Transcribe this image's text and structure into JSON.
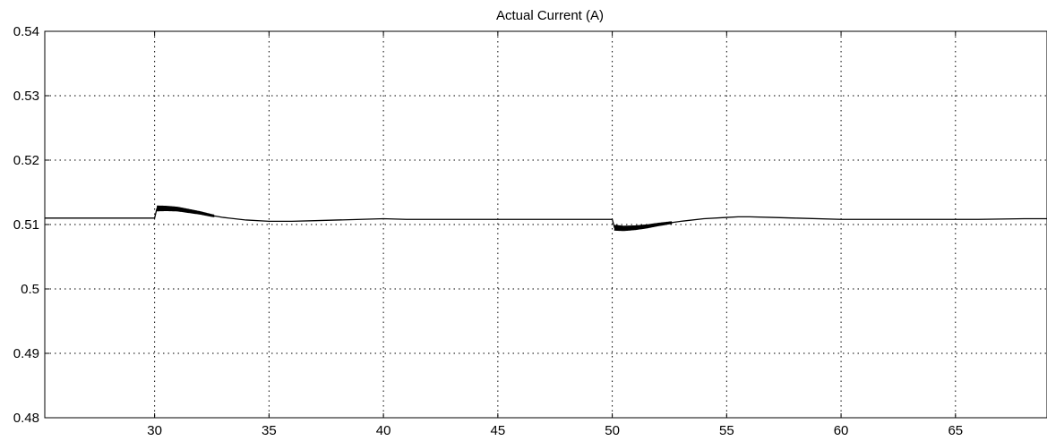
{
  "chart_data": {
    "type": "line",
    "title": "Actual Current (A)",
    "xlabel": "",
    "ylabel": "",
    "xlim": [
      25.2,
      69.0
    ],
    "ylim": [
      0.48,
      0.54
    ],
    "xticks": [
      30,
      35,
      40,
      45,
      50,
      55,
      60,
      65
    ],
    "xtick_labels": [
      "30",
      "35",
      "40",
      "45",
      "50",
      "55",
      "60",
      "65"
    ],
    "yticks": [
      0.48,
      0.49,
      0.5,
      0.51,
      0.52,
      0.53,
      0.54
    ],
    "ytick_labels": [
      "0.48",
      "0.49",
      "0.5",
      "0.51",
      "0.52",
      "0.53",
      "0.54"
    ],
    "grid": true,
    "legend": "none",
    "line_color": "#000000",
    "series": [
      {
        "x": [
          25.2,
          30.0,
          30.1,
          30.5,
          31.0,
          31.5,
          32.0,
          32.5,
          33.0,
          34.0,
          35.0,
          36.0,
          37.0,
          38.0,
          39.0,
          40.0,
          41.0,
          42.0,
          44.0,
          46.0,
          48.0,
          50.0,
          50.1,
          50.5,
          51.0,
          51.5,
          52.0,
          53.0,
          54.0,
          55.0,
          55.5,
          56.0,
          57.0,
          58.0,
          60.0,
          62.0,
          64.0,
          66.0,
          68.0,
          69.0
        ],
        "y": [
          0.511,
          0.511,
          0.5125,
          0.5125,
          0.5124,
          0.5121,
          0.5118,
          0.5114,
          0.5111,
          0.5107,
          0.5105,
          0.5105,
          0.5106,
          0.5107,
          0.5108,
          0.5109,
          0.5108,
          0.5108,
          0.5108,
          0.5108,
          0.5108,
          0.5108,
          0.5095,
          0.5094,
          0.5095,
          0.5097,
          0.51,
          0.5105,
          0.5109,
          0.5111,
          0.5112,
          0.5112,
          0.5111,
          0.511,
          0.5108,
          0.5108,
          0.5108,
          0.5108,
          0.5109,
          0.5109
        ]
      }
    ],
    "noisy_segments": [
      {
        "x_start": 30.1,
        "x_end": 32.6,
        "amplitude": 0.00045
      },
      {
        "x_start": 50.1,
        "x_end": 52.6,
        "amplitude": 0.00045
      }
    ]
  }
}
